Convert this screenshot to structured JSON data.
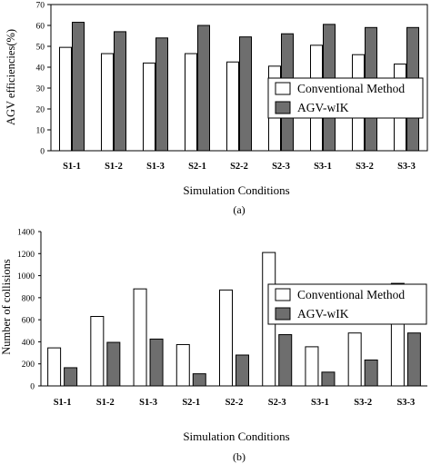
{
  "chart_data": [
    {
      "type": "bar",
      "panel_label": "(a)",
      "categories": [
        "S1-1",
        "S1-2",
        "S1-3",
        "S2-1",
        "S2-2",
        "S2-3",
        "S3-1",
        "S3-2",
        "S3-3"
      ],
      "series": [
        {
          "name": "Conventional Method",
          "values": [
            49.5,
            46.5,
            42,
            46.5,
            42.5,
            40.5,
            50.5,
            46,
            41.5
          ],
          "color": "#ffffff"
        },
        {
          "name": "AGV-wIK",
          "values": [
            61.5,
            57,
            54,
            60,
            54.5,
            56,
            60.5,
            59,
            59
          ],
          "color": "#6e6e6e"
        }
      ],
      "xlabel": "Simulation Conditions",
      "ylabel": "AGV efficiencies(%)",
      "ylim": [
        0,
        70
      ],
      "yticks": [
        "0",
        "10",
        "20",
        "30",
        "40",
        "50",
        "60",
        "70"
      ],
      "grid": false,
      "legend_position": "right"
    },
    {
      "type": "bar",
      "panel_label": "(b)",
      "categories": [
        "S1-1",
        "S1-2",
        "S1-3",
        "S2-1",
        "S2-2",
        "S2-3",
        "S3-1",
        "S3-2",
        "S3-3"
      ],
      "series": [
        {
          "name": "Conventional Method",
          "values": [
            345,
            630,
            880,
            375,
            870,
            1210,
            355,
            480,
            930
          ],
          "color": "#ffffff"
        },
        {
          "name": "AGV-wIK",
          "values": [
            165,
            395,
            425,
            110,
            280,
            465,
            125,
            235,
            480
          ],
          "color": "#6e6e6e"
        }
      ],
      "xlabel": "Simulation Conditions",
      "ylabel": "Number of collisions",
      "ylim": [
        0,
        1400
      ],
      "yticks": [
        "0",
        "200",
        "400",
        "600",
        "800",
        "1000",
        "1200",
        "1400"
      ],
      "grid": false,
      "legend_position": "top-right"
    }
  ]
}
